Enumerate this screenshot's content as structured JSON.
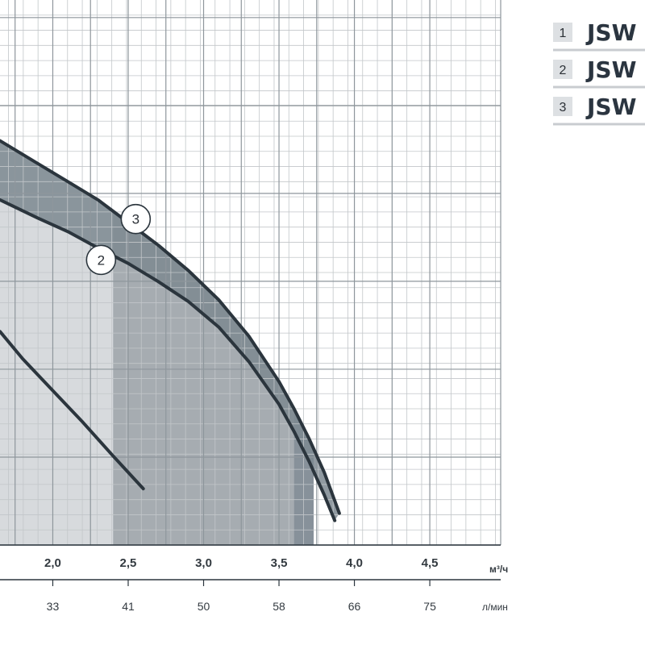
{
  "chart_data": {
    "type": "line",
    "title": "",
    "xlabel": "",
    "ylabel": "",
    "x_unit_primary": "м³/ч",
    "x_unit_secondary": "л/мин",
    "x_ticks_primary": [
      "2,0",
      "2,5",
      "3,0",
      "3,5",
      "4,0",
      "4,5"
    ],
    "x_ticks_secondary": [
      "33",
      "41",
      "50",
      "58",
      "66",
      "75"
    ],
    "x_tick_values": [
      2.0,
      2.5,
      3.0,
      3.5,
      4.0,
      4.5
    ],
    "xlim": [
      1.65,
      4.97
    ],
    "ylim": [
      0,
      6
    ],
    "grid": true,
    "legend": [
      {
        "number": "1",
        "label": "JSW"
      },
      {
        "number": "2",
        "label": "JSW"
      },
      {
        "number": "3",
        "label": "JSW"
      }
    ],
    "series": [
      {
        "name": "1",
        "color": "#2b353d",
        "x": [
          1.65,
          1.8,
          2.0,
          2.2,
          2.4,
          2.6
        ],
        "y": [
          2.35,
          2.05,
          1.7,
          1.35,
          0.98,
          0.62
        ]
      },
      {
        "name": "2",
        "color": "#2b353d",
        "label": "2",
        "x": [
          1.65,
          1.9,
          2.1,
          2.3,
          2.5,
          2.7,
          2.9,
          3.1,
          3.3,
          3.5,
          3.6,
          3.7,
          3.8,
          3.87
        ],
        "y": [
          3.8,
          3.6,
          3.45,
          3.27,
          3.1,
          2.9,
          2.68,
          2.4,
          2.02,
          1.55,
          1.25,
          0.92,
          0.55,
          0.27
        ]
      },
      {
        "name": "3",
        "color": "#2b353d",
        "label": "3",
        "x": [
          1.65,
          1.9,
          2.1,
          2.3,
          2.5,
          2.7,
          2.9,
          3.1,
          3.3,
          3.5,
          3.6,
          3.7,
          3.8,
          3.9
        ],
        "y": [
          4.45,
          4.2,
          4.0,
          3.8,
          3.55,
          3.3,
          3.02,
          2.7,
          2.3,
          1.8,
          1.5,
          1.17,
          0.8,
          0.35
        ]
      }
    ],
    "shaded_regions": [
      {
        "name": "range-1",
        "x_to": 2.4,
        "color": "#d7dadd"
      },
      {
        "name": "range-2",
        "x_to": 3.6,
        "color": "#a6acb1"
      },
      {
        "name": "range-3",
        "x_to": 3.73,
        "color": "#87919a"
      }
    ]
  }
}
